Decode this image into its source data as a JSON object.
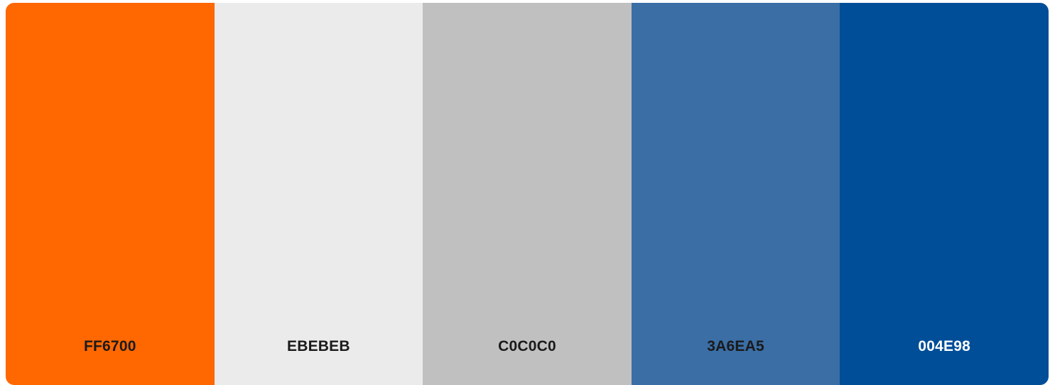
{
  "palette": {
    "swatches": [
      {
        "hex": "FF6700",
        "color": "#FF6700",
        "text_color": "#1a1a1a"
      },
      {
        "hex": "EBEBEB",
        "color": "#EBEBEB",
        "text_color": "#1a1a1a"
      },
      {
        "hex": "C0C0C0",
        "color": "#C0C0C0",
        "text_color": "#1a1a1a"
      },
      {
        "hex": "3A6EA5",
        "color": "#3A6EA5",
        "text_color": "#1a1a1a"
      },
      {
        "hex": "004E98",
        "color": "#004E98",
        "text_color": "#ffffff"
      }
    ]
  }
}
